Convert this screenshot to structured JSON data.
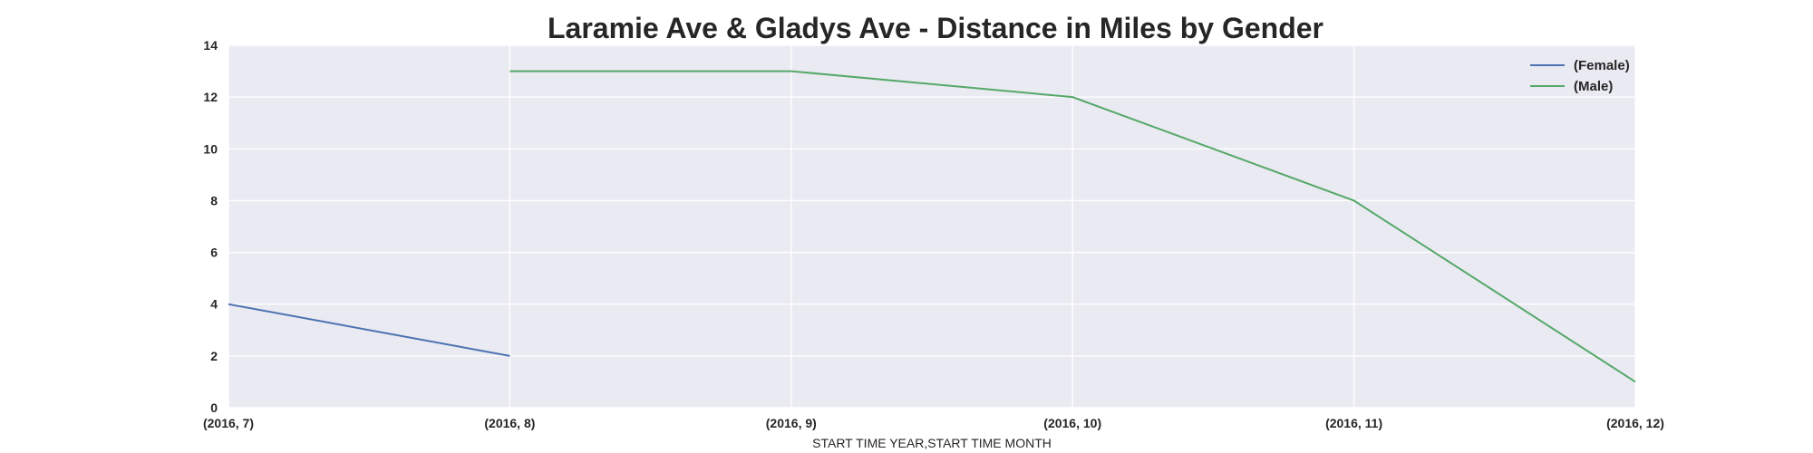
{
  "chart_data": {
    "type": "line",
    "title": "Laramie Ave & Gladys Ave - Distance in Miles by Gender",
    "xlabel": "START TIME YEAR,START TIME MONTH",
    "ylabel": "",
    "categories": [
      "(2016, 7)",
      "(2016, 8)",
      "(2016, 9)",
      "(2016, 10)",
      "(2016, 11)",
      "(2016, 12)"
    ],
    "ylim": [
      0,
      14
    ],
    "yticks": [
      "0",
      "2",
      "4",
      "6",
      "8",
      "10",
      "12",
      "14"
    ],
    "grid": true,
    "legend_position": "top-right",
    "series": [
      {
        "name": "(Female)",
        "color": "#4c72b0",
        "values": [
          4,
          2,
          null,
          null,
          null,
          null
        ]
      },
      {
        "name": "(Male)",
        "color": "#55a868",
        "values": [
          null,
          13,
          13,
          12,
          8,
          1
        ]
      }
    ]
  },
  "colors": {
    "plot_background": "#eaeaf2"
  }
}
